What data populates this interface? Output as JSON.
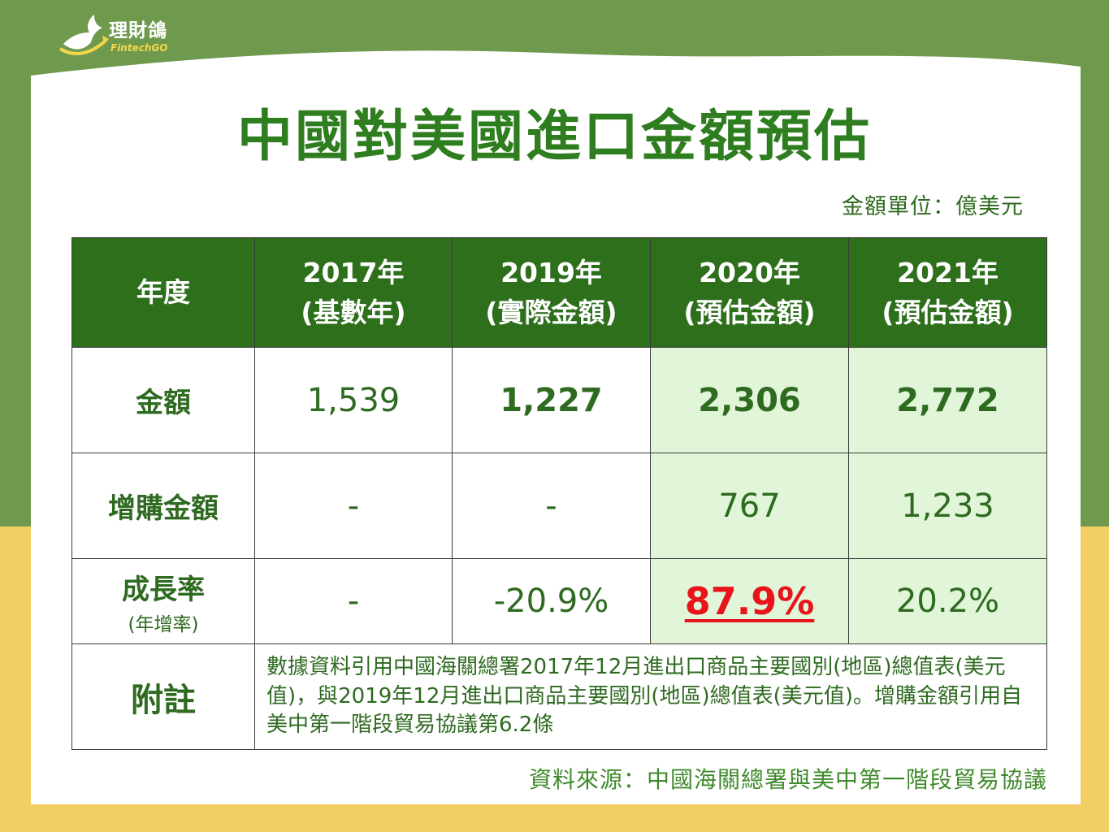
{
  "logo": {
    "name": "理財鴿",
    "sub": "FintechGO"
  },
  "title": "中國對美國進口金額預估",
  "unit_label": "金額單位：億美元",
  "colors": {
    "header_bg": "#2e6f1c",
    "highlight_bg": "#e1f5d8",
    "accent_red": "#e8141b",
    "text_green": "#2e6a20"
  },
  "chart_data": {
    "type": "table",
    "columns": [
      {
        "label": "年度",
        "sub": ""
      },
      {
        "label": "2017年",
        "sub": "(基數年)"
      },
      {
        "label": "2019年",
        "sub": "(實際金額)"
      },
      {
        "label": "2020年",
        "sub": "(預估金額)"
      },
      {
        "label": "2021年",
        "sub": "(預估金額)"
      }
    ],
    "rows": [
      {
        "label": "金額",
        "sub": "",
        "values": [
          "1,539",
          "1,227",
          "2,306",
          "2,772"
        ]
      },
      {
        "label": "增購金額",
        "sub": "",
        "values": [
          "-",
          "-",
          "767",
          "1,233"
        ]
      },
      {
        "label": "成長率",
        "sub": "(年增率)",
        "values": [
          "-",
          "-20.9%",
          "87.9%",
          "20.2%"
        ]
      }
    ],
    "note": {
      "label": "附註",
      "text": "數據資料引用中國海關總署2017年12月進出口商品主要國別(地區)總值表(美元值)，與2019年12月進出口商品主要國別(地區)總值表(美元值)。增購金額引用自美中第一階段貿易協議第6.2條"
    }
  },
  "source": "資料來源：中國海關總署與美中第一階段貿易協議"
}
